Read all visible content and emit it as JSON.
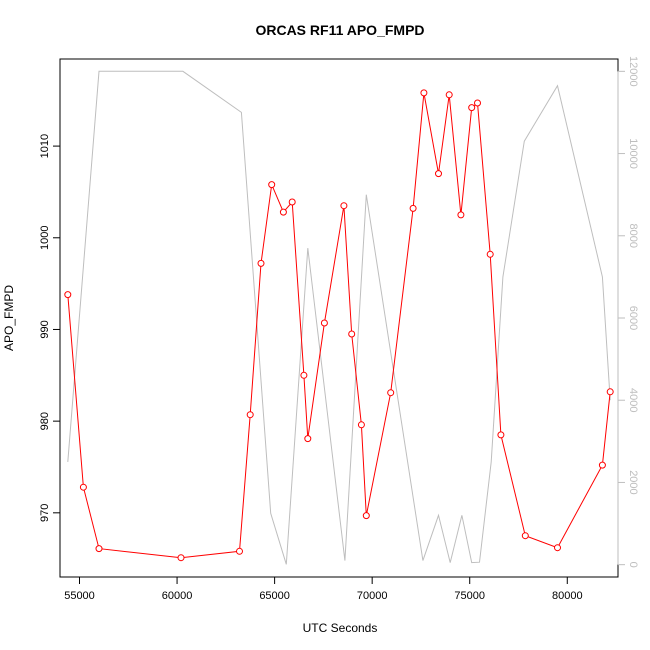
{
  "chart_data": {
    "type": "line",
    "title": "ORCAS RF11 APO_FMPD",
    "xlabel": "UTC Seconds",
    "ylabel": "APO_FMPD",
    "xlim": [
      54000,
      82600
    ],
    "ylim": [
      963,
      1019.5
    ],
    "y2lim": [
      -300,
      12300
    ],
    "x_ticks": [
      55000,
      60000,
      65000,
      70000,
      75000,
      80000
    ],
    "y_ticks": [
      970,
      980,
      990,
      1000,
      1010
    ],
    "y2_ticks": [
      0,
      2000,
      4000,
      6000,
      8000,
      10000,
      12000
    ],
    "grid": false,
    "colors": {
      "primary": "#ff0000",
      "secondary": "#bebebe",
      "frame": "#000000"
    },
    "series": [
      {
        "axis": "left",
        "style": "line+points",
        "x": [
          54400,
          55200,
          56000,
          60200,
          63200,
          63750,
          64300,
          64850,
          65450,
          65900,
          66500,
          66700,
          67550,
          68550,
          68950,
          69450,
          69700,
          70950,
          72100,
          72650,
          73400,
          73950,
          74550,
          75100,
          75400,
          76050,
          76600,
          77850,
          79500,
          81800,
          82200
        ],
        "y": [
          993.8,
          972.8,
          966.1,
          965.1,
          965.8,
          980.7,
          997.2,
          1005.8,
          1002.8,
          1003.9,
          985.0,
          978.1,
          990.7,
          1003.5,
          989.5,
          979.6,
          969.7,
          983.1,
          1003.2,
          1015.8,
          1007.0,
          1015.6,
          1002.5,
          1014.2,
          1014.7,
          998.2,
          978.5,
          967.5,
          966.2,
          975.2,
          983.2
        ]
      },
      {
        "axis": "right",
        "style": "line",
        "x": [
          54400,
          56000,
          60300,
          63300,
          64800,
          65600,
          66700,
          68600,
          69700,
          72600,
          73400,
          74000,
          74600,
          75100,
          75500,
          76100,
          76700,
          77800,
          79500,
          81800,
          82200
        ],
        "y": [
          2500,
          12000,
          12000,
          11000,
          1250,
          10,
          7700,
          100,
          9000,
          100,
          1200,
          50,
          1200,
          50,
          60,
          2500,
          7000,
          10300,
          11650,
          7000,
          4000
        ]
      }
    ]
  }
}
